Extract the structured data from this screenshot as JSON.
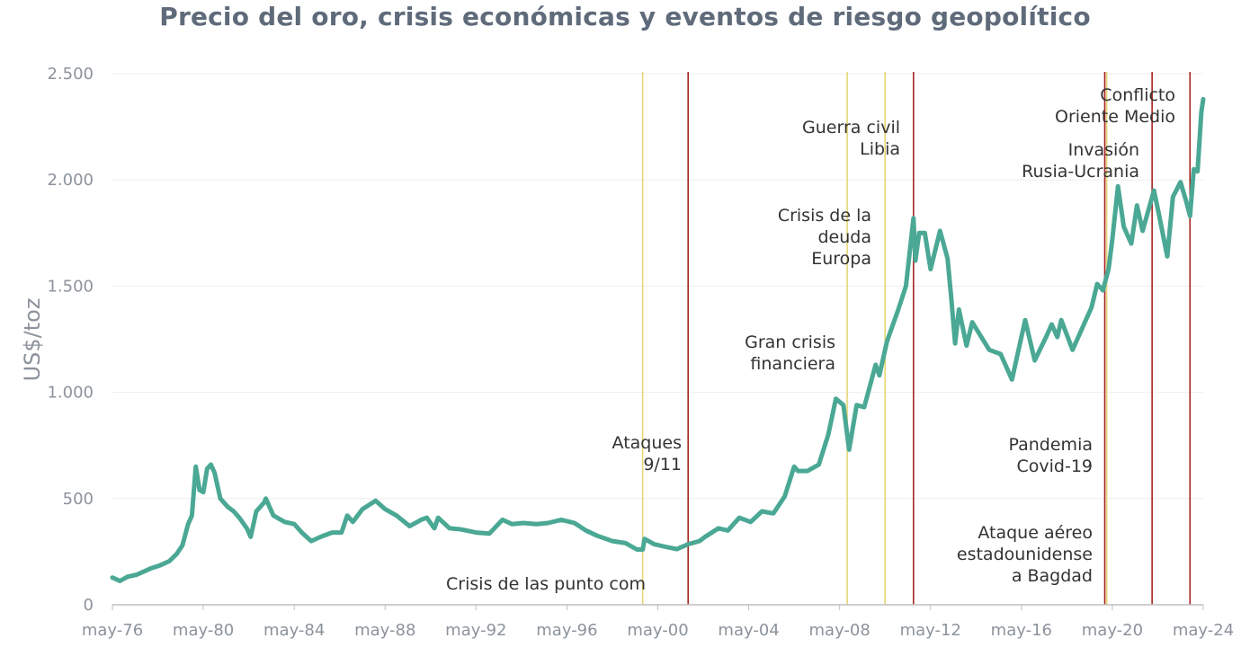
{
  "chart_data": {
    "type": "line",
    "title": "Precio del oro, crisis económicas y eventos de riesgo geopolítico",
    "ylabel": "US$/toz",
    "xlabel": "",
    "ylim": [
      0,
      2500
    ],
    "yticks": [
      0,
      500,
      1000,
      1500,
      2000,
      2500
    ],
    "ytick_labels": [
      "0",
      "500",
      "1.000",
      "1.500",
      "2.000",
      "2.500"
    ],
    "xlim": [
      "1976-05",
      "2024-05"
    ],
    "x_tick_labels": [
      "may-76",
      "may-80",
      "may-84",
      "may-88",
      "may-92",
      "may-96",
      "may-00",
      "may-04",
      "may-08",
      "may-12",
      "may-16",
      "may-20",
      "may-24"
    ],
    "x_tick_dates": [
      "1976-05",
      "1980-05",
      "1984-05",
      "1988-05",
      "1992-05",
      "1996-05",
      "2000-05",
      "2004-05",
      "2008-05",
      "2012-05",
      "2016-05",
      "2020-05",
      "2024-05"
    ],
    "grid": true,
    "line_color": "#4aa894",
    "series": [
      {
        "values": [
          [
            "1976-05",
            128
          ],
          [
            "1976-09",
            112
          ],
          [
            "1977-01",
            132
          ],
          [
            "1977-06",
            142
          ],
          [
            "1978-01",
            170
          ],
          [
            "1978-06",
            185
          ],
          [
            "1978-11",
            205
          ],
          [
            "1979-03",
            240
          ],
          [
            "1979-06",
            280
          ],
          [
            "1979-09",
            380
          ],
          [
            "1979-11",
            420
          ],
          [
            "1980-01",
            650
          ],
          [
            "1980-03",
            540
          ],
          [
            "1980-05",
            530
          ],
          [
            "1980-07",
            640
          ],
          [
            "1980-09",
            660
          ],
          [
            "1980-11",
            620
          ],
          [
            "1981-02",
            500
          ],
          [
            "1981-06",
            460
          ],
          [
            "1981-09",
            440
          ],
          [
            "1981-12",
            410
          ],
          [
            "1982-04",
            360
          ],
          [
            "1982-06",
            320
          ],
          [
            "1982-09",
            440
          ],
          [
            "1983-01",
            480
          ],
          [
            "1983-02",
            500
          ],
          [
            "1983-06",
            420
          ],
          [
            "1983-12",
            390
          ],
          [
            "1984-05",
            380
          ],
          [
            "1984-09",
            340
          ],
          [
            "1985-02",
            300
          ],
          [
            "1985-07",
            320
          ],
          [
            "1986-01",
            340
          ],
          [
            "1986-06",
            340
          ],
          [
            "1986-09",
            420
          ],
          [
            "1986-12",
            390
          ],
          [
            "1987-05",
            450
          ],
          [
            "1987-12",
            490
          ],
          [
            "1988-05",
            450
          ],
          [
            "1988-11",
            420
          ],
          [
            "1989-06",
            370
          ],
          [
            "1989-12",
            400
          ],
          [
            "1990-03",
            410
          ],
          [
            "1990-07",
            360
          ],
          [
            "1990-09",
            410
          ],
          [
            "1991-03",
            360
          ],
          [
            "1991-09",
            355
          ],
          [
            "1992-05",
            340
          ],
          [
            "1992-12",
            335
          ],
          [
            "1993-07",
            400
          ],
          [
            "1993-12",
            380
          ],
          [
            "1994-06",
            385
          ],
          [
            "1995-01",
            380
          ],
          [
            "1995-07",
            385
          ],
          [
            "1996-02",
            400
          ],
          [
            "1996-09",
            385
          ],
          [
            "1997-03",
            350
          ],
          [
            "1997-09",
            325
          ],
          [
            "1998-05",
            300
          ],
          [
            "1998-12",
            290
          ],
          [
            "1999-06",
            260
          ],
          [
            "1999-09",
            260
          ],
          [
            "1999-10",
            310
          ],
          [
            "2000-03",
            285
          ],
          [
            "2000-08",
            275
          ],
          [
            "2001-03",
            262
          ],
          [
            "2001-09",
            285
          ],
          [
            "2002-03",
            300
          ],
          [
            "2002-06",
            320
          ],
          [
            "2003-01",
            360
          ],
          [
            "2003-06",
            350
          ],
          [
            "2003-12",
            410
          ],
          [
            "2004-06",
            390
          ],
          [
            "2004-12",
            440
          ],
          [
            "2005-06",
            430
          ],
          [
            "2005-12",
            510
          ],
          [
            "2006-05",
            650
          ],
          [
            "2006-07",
            630
          ],
          [
            "2006-12",
            630
          ],
          [
            "2007-06",
            660
          ],
          [
            "2007-11",
            800
          ],
          [
            "2008-03",
            970
          ],
          [
            "2008-07",
            940
          ],
          [
            "2008-10",
            730
          ],
          [
            "2009-02",
            940
          ],
          [
            "2009-06",
            930
          ],
          [
            "2009-12",
            1130
          ],
          [
            "2010-02",
            1080
          ],
          [
            "2010-06",
            1240
          ],
          [
            "2010-12",
            1390
          ],
          [
            "2011-04",
            1500
          ],
          [
            "2011-08",
            1820
          ],
          [
            "2011-09",
            1620
          ],
          [
            "2011-11",
            1750
          ],
          [
            "2012-02",
            1750
          ],
          [
            "2012-05",
            1580
          ],
          [
            "2012-10",
            1760
          ],
          [
            "2013-02",
            1630
          ],
          [
            "2013-04",
            1440
          ],
          [
            "2013-06",
            1230
          ],
          [
            "2013-08",
            1390
          ],
          [
            "2013-12",
            1220
          ],
          [
            "2014-03",
            1330
          ],
          [
            "2014-12",
            1200
          ],
          [
            "2015-06",
            1180
          ],
          [
            "2015-12",
            1060
          ],
          [
            "2016-07",
            1340
          ],
          [
            "2016-12",
            1150
          ],
          [
            "2017-06",
            1260
          ],
          [
            "2017-09",
            1320
          ],
          [
            "2017-12",
            1260
          ],
          [
            "2018-02",
            1340
          ],
          [
            "2018-08",
            1200
          ],
          [
            "2019-02",
            1320
          ],
          [
            "2019-06",
            1400
          ],
          [
            "2019-09",
            1510
          ],
          [
            "2019-12",
            1480
          ],
          [
            "2020-03",
            1580
          ],
          [
            "2020-05",
            1720
          ],
          [
            "2020-08",
            1970
          ],
          [
            "2020-11",
            1780
          ],
          [
            "2021-03",
            1700
          ],
          [
            "2021-06",
            1880
          ],
          [
            "2021-09",
            1760
          ],
          [
            "2022-03",
            1950
          ],
          [
            "2022-06",
            1820
          ],
          [
            "2022-10",
            1640
          ],
          [
            "2023-01",
            1920
          ],
          [
            "2023-05",
            1990
          ],
          [
            "2023-08",
            1900
          ],
          [
            "2023-10",
            1830
          ],
          [
            "2023-12",
            2050
          ],
          [
            "2024-02",
            2040
          ],
          [
            "2024-04",
            2320
          ],
          [
            "2024-05",
            2380
          ]
        ]
      }
    ],
    "events": [
      {
        "date": "1999-09",
        "color": "#e6d676",
        "label": [
          "Crisis de las punto com"
        ]
      },
      {
        "date": "2001-09",
        "color": "#a82523",
        "label": [
          "Ataques",
          "9/11"
        ]
      },
      {
        "date": "2008-09",
        "color": "#e6d676",
        "label": [
          "Gran crisis",
          "financiera"
        ]
      },
      {
        "date": "2010-05",
        "color": "#e6d676",
        "label": [
          "Crisis de la",
          "deuda",
          "Europa"
        ]
      },
      {
        "date": "2011-08",
        "color": "#a82523",
        "label": [
          "Guerra civil",
          "Libia"
        ]
      },
      {
        "date": "2020-01",
        "color": "#a82523",
        "label": [
          "Ataque aéreo",
          "estadounidense",
          "a Bagdad"
        ]
      },
      {
        "date": "2020-02",
        "color": "#e6d676",
        "label": [
          "Pandemia",
          "Covid-19"
        ]
      },
      {
        "date": "2022-02",
        "color": "#a82523",
        "label": [
          "Invasión",
          "Rusia-Ucrania"
        ]
      },
      {
        "date": "2023-10",
        "color": "#a82523",
        "label": [
          "Conflicto",
          "Oriente Medio"
        ]
      }
    ]
  }
}
